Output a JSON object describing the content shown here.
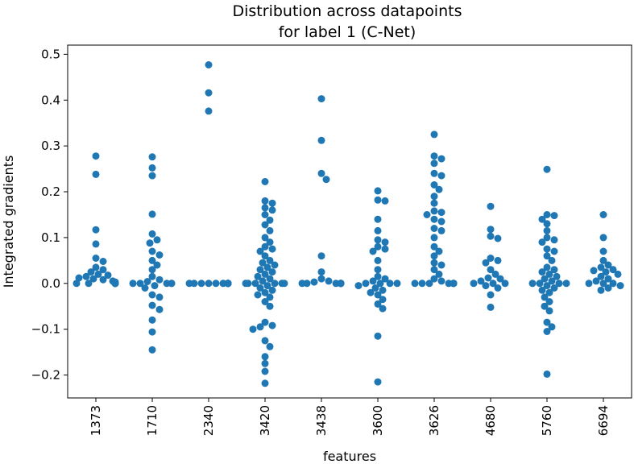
{
  "chart_data": {
    "type": "scatter",
    "title_line1": "Distribution across datapoints",
    "title_line2": "for label 1 (C-Net)",
    "xlabel": "features",
    "ylabel": "Integrated gradients",
    "categories": [
      "1373",
      "1710",
      "2340",
      "3420",
      "3438",
      "3600",
      "3626",
      "4680",
      "5760",
      "6694"
    ],
    "yticks": [
      "0.5",
      "0.4",
      "0.3",
      "0.2",
      "0.1",
      "0.0",
      "−0.1",
      "−0.2"
    ],
    "ytick_values": [
      0.5,
      0.4,
      0.3,
      0.2,
      0.1,
      0.0,
      -0.1,
      -0.2
    ],
    "ylim": [
      -0.25,
      0.52
    ],
    "grid": false,
    "legend": "none",
    "marker_color": "#1f77b4",
    "points": [
      [
        0.278,
        0.238,
        0.117,
        0.086,
        0.055,
        0.048,
        0.035,
        0.03,
        0.025,
        0.02,
        0.018,
        0.015,
        0.012,
        0.01,
        0.008,
        0.005,
        0.003,
        0.0,
        0.0,
        0.0,
        0.0,
        0.0,
        0.0,
        0.0,
        0.0,
        0.0,
        0.0,
        0.0
      ],
      [
        0.276,
        0.252,
        0.235,
        0.151,
        0.108,
        0.095,
        0.088,
        0.07,
        0.062,
        0.05,
        0.04,
        0.03,
        0.015,
        0.008,
        0.004,
        0.0,
        0.0,
        0.0,
        0.0,
        0.0,
        -0.005,
        -0.01,
        -0.025,
        -0.03,
        -0.048,
        -0.057,
        -0.08,
        -0.106,
        -0.145
      ],
      [
        0.477,
        0.416,
        0.376,
        0.0,
        0.0,
        0.0,
        0.0,
        0.0,
        0.0,
        0.0,
        0.0,
        0.0,
        0.0,
        0.0,
        0.0,
        0.0,
        0.0,
        0.0
      ],
      [
        0.222,
        0.18,
        0.175,
        0.165,
        0.16,
        0.15,
        0.138,
        0.128,
        0.115,
        0.1,
        0.09,
        0.08,
        0.075,
        0.07,
        0.06,
        0.05,
        0.045,
        0.04,
        0.035,
        0.03,
        0.025,
        0.02,
        0.015,
        0.01,
        0.005,
        0.0,
        0.0,
        0.0,
        0.0,
        0.0,
        0.0,
        -0.005,
        -0.01,
        -0.015,
        -0.02,
        -0.025,
        -0.03,
        -0.04,
        -0.05,
        -0.085,
        -0.092,
        -0.095,
        -0.1,
        -0.125,
        -0.138,
        -0.16,
        -0.175,
        -0.192,
        -0.218
      ],
      [
        0.403,
        0.312,
        0.24,
        0.227,
        0.06,
        0.025,
        0.01,
        0.005,
        0.003,
        0.0,
        0.0,
        0.0,
        0.0,
        0.0,
        0.0,
        0.0,
        0.0,
        0.0,
        0.0
      ],
      [
        0.202,
        0.182,
        0.18,
        0.14,
        0.115,
        0.095,
        0.09,
        0.08,
        0.075,
        0.07,
        0.05,
        0.03,
        0.015,
        0.01,
        0.005,
        0.0,
        0.0,
        0.0,
        0.0,
        -0.005,
        -0.01,
        -0.015,
        -0.02,
        -0.025,
        -0.035,
        -0.045,
        -0.055,
        -0.115,
        -0.215
      ],
      [
        0.325,
        0.278,
        0.272,
        0.262,
        0.24,
        0.235,
        0.215,
        0.205,
        0.19,
        0.175,
        0.158,
        0.155,
        0.15,
        0.14,
        0.135,
        0.12,
        0.115,
        0.1,
        0.08,
        0.07,
        0.06,
        0.045,
        0.04,
        0.03,
        0.02,
        0.01,
        0.005,
        0.0,
        0.0,
        0.0,
        0.0,
        0.0,
        0.0,
        0.0,
        0.0
      ],
      [
        0.168,
        0.118,
        0.103,
        0.098,
        0.055,
        0.05,
        0.045,
        0.03,
        0.02,
        0.012,
        0.01,
        0.005,
        0.0,
        0.0,
        0.0,
        -0.005,
        -0.01,
        -0.025,
        -0.052
      ],
      [
        0.249,
        0.15,
        0.148,
        0.14,
        0.13,
        0.115,
        0.1,
        0.095,
        0.09,
        0.075,
        0.07,
        0.06,
        0.05,
        0.035,
        0.03,
        0.025,
        0.02,
        0.015,
        0.01,
        0.005,
        0.0,
        0.0,
        0.0,
        0.0,
        -0.005,
        -0.01,
        -0.015,
        -0.02,
        -0.03,
        -0.04,
        -0.05,
        -0.06,
        -0.085,
        -0.095,
        -0.105,
        -0.198
      ],
      [
        0.15,
        0.1,
        0.07,
        0.05,
        0.04,
        0.035,
        0.03,
        0.028,
        0.025,
        0.02,
        0.015,
        0.01,
        0.005,
        0.0,
        0.0,
        0.0,
        -0.005,
        -0.01,
        -0.015
      ]
    ]
  }
}
